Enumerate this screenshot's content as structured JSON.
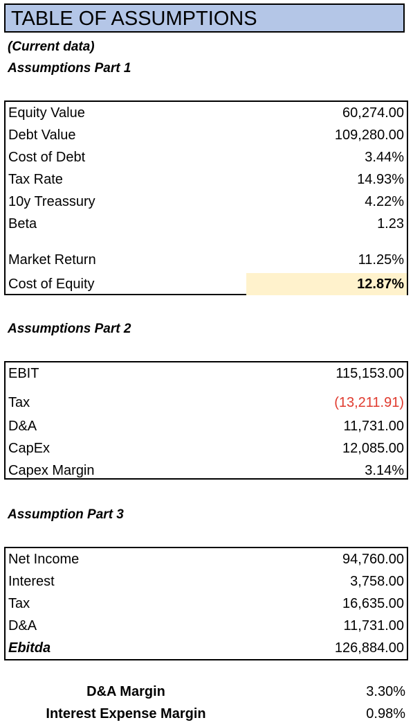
{
  "title": "TABLE OF ASSUMPTIONS",
  "subtitle": "(Current data)",
  "part1": {
    "heading": "Assumptions Part 1",
    "rows": [
      {
        "label": "Equity Value",
        "value": "60,274.00"
      },
      {
        "label": "Debt Value",
        "value": "109,280.00"
      },
      {
        "label": "Cost of Debt",
        "value": "3.44%"
      },
      {
        "label": "Tax Rate",
        "value": "14.93%"
      },
      {
        "label": "10y Treassury",
        "value": "4.22%"
      },
      {
        "label": "Beta",
        "value": "1.23"
      },
      {
        "label": "Market Return",
        "value": "11.25%"
      },
      {
        "label": "Cost of Equity",
        "value": "12.87%"
      }
    ],
    "highlight_color": "#fff2cc"
  },
  "part2": {
    "heading": "Assumptions Part 2",
    "rows": [
      {
        "label": "EBIT",
        "value": "115,153.00"
      },
      {
        "label": "Tax",
        "value": "(13,211.91)"
      },
      {
        "label": "D&A",
        "value": "11,731.00"
      },
      {
        "label": "CapEx",
        "value": "12,085.00"
      },
      {
        "label": "Capex Margin",
        "value": "3.14%"
      }
    ],
    "negative_color": "#e03a2e"
  },
  "part3": {
    "heading": "Assumption Part 3",
    "rows": [
      {
        "label": "Net Income",
        "value": "94,760.00"
      },
      {
        "label": "Interest",
        "value": "3,758.00"
      },
      {
        "label": "Tax",
        "value": "16,635.00"
      },
      {
        "label": "D&A",
        "value": "11,731.00"
      },
      {
        "label": "Ebitda",
        "value": "126,884.00"
      }
    ]
  },
  "margins": [
    {
      "label": "D&A Margin",
      "value": "3.30%"
    },
    {
      "label": "Interest Expense Margin",
      "value": "0.98%"
    }
  ],
  "title_color": "#b4c6e7"
}
